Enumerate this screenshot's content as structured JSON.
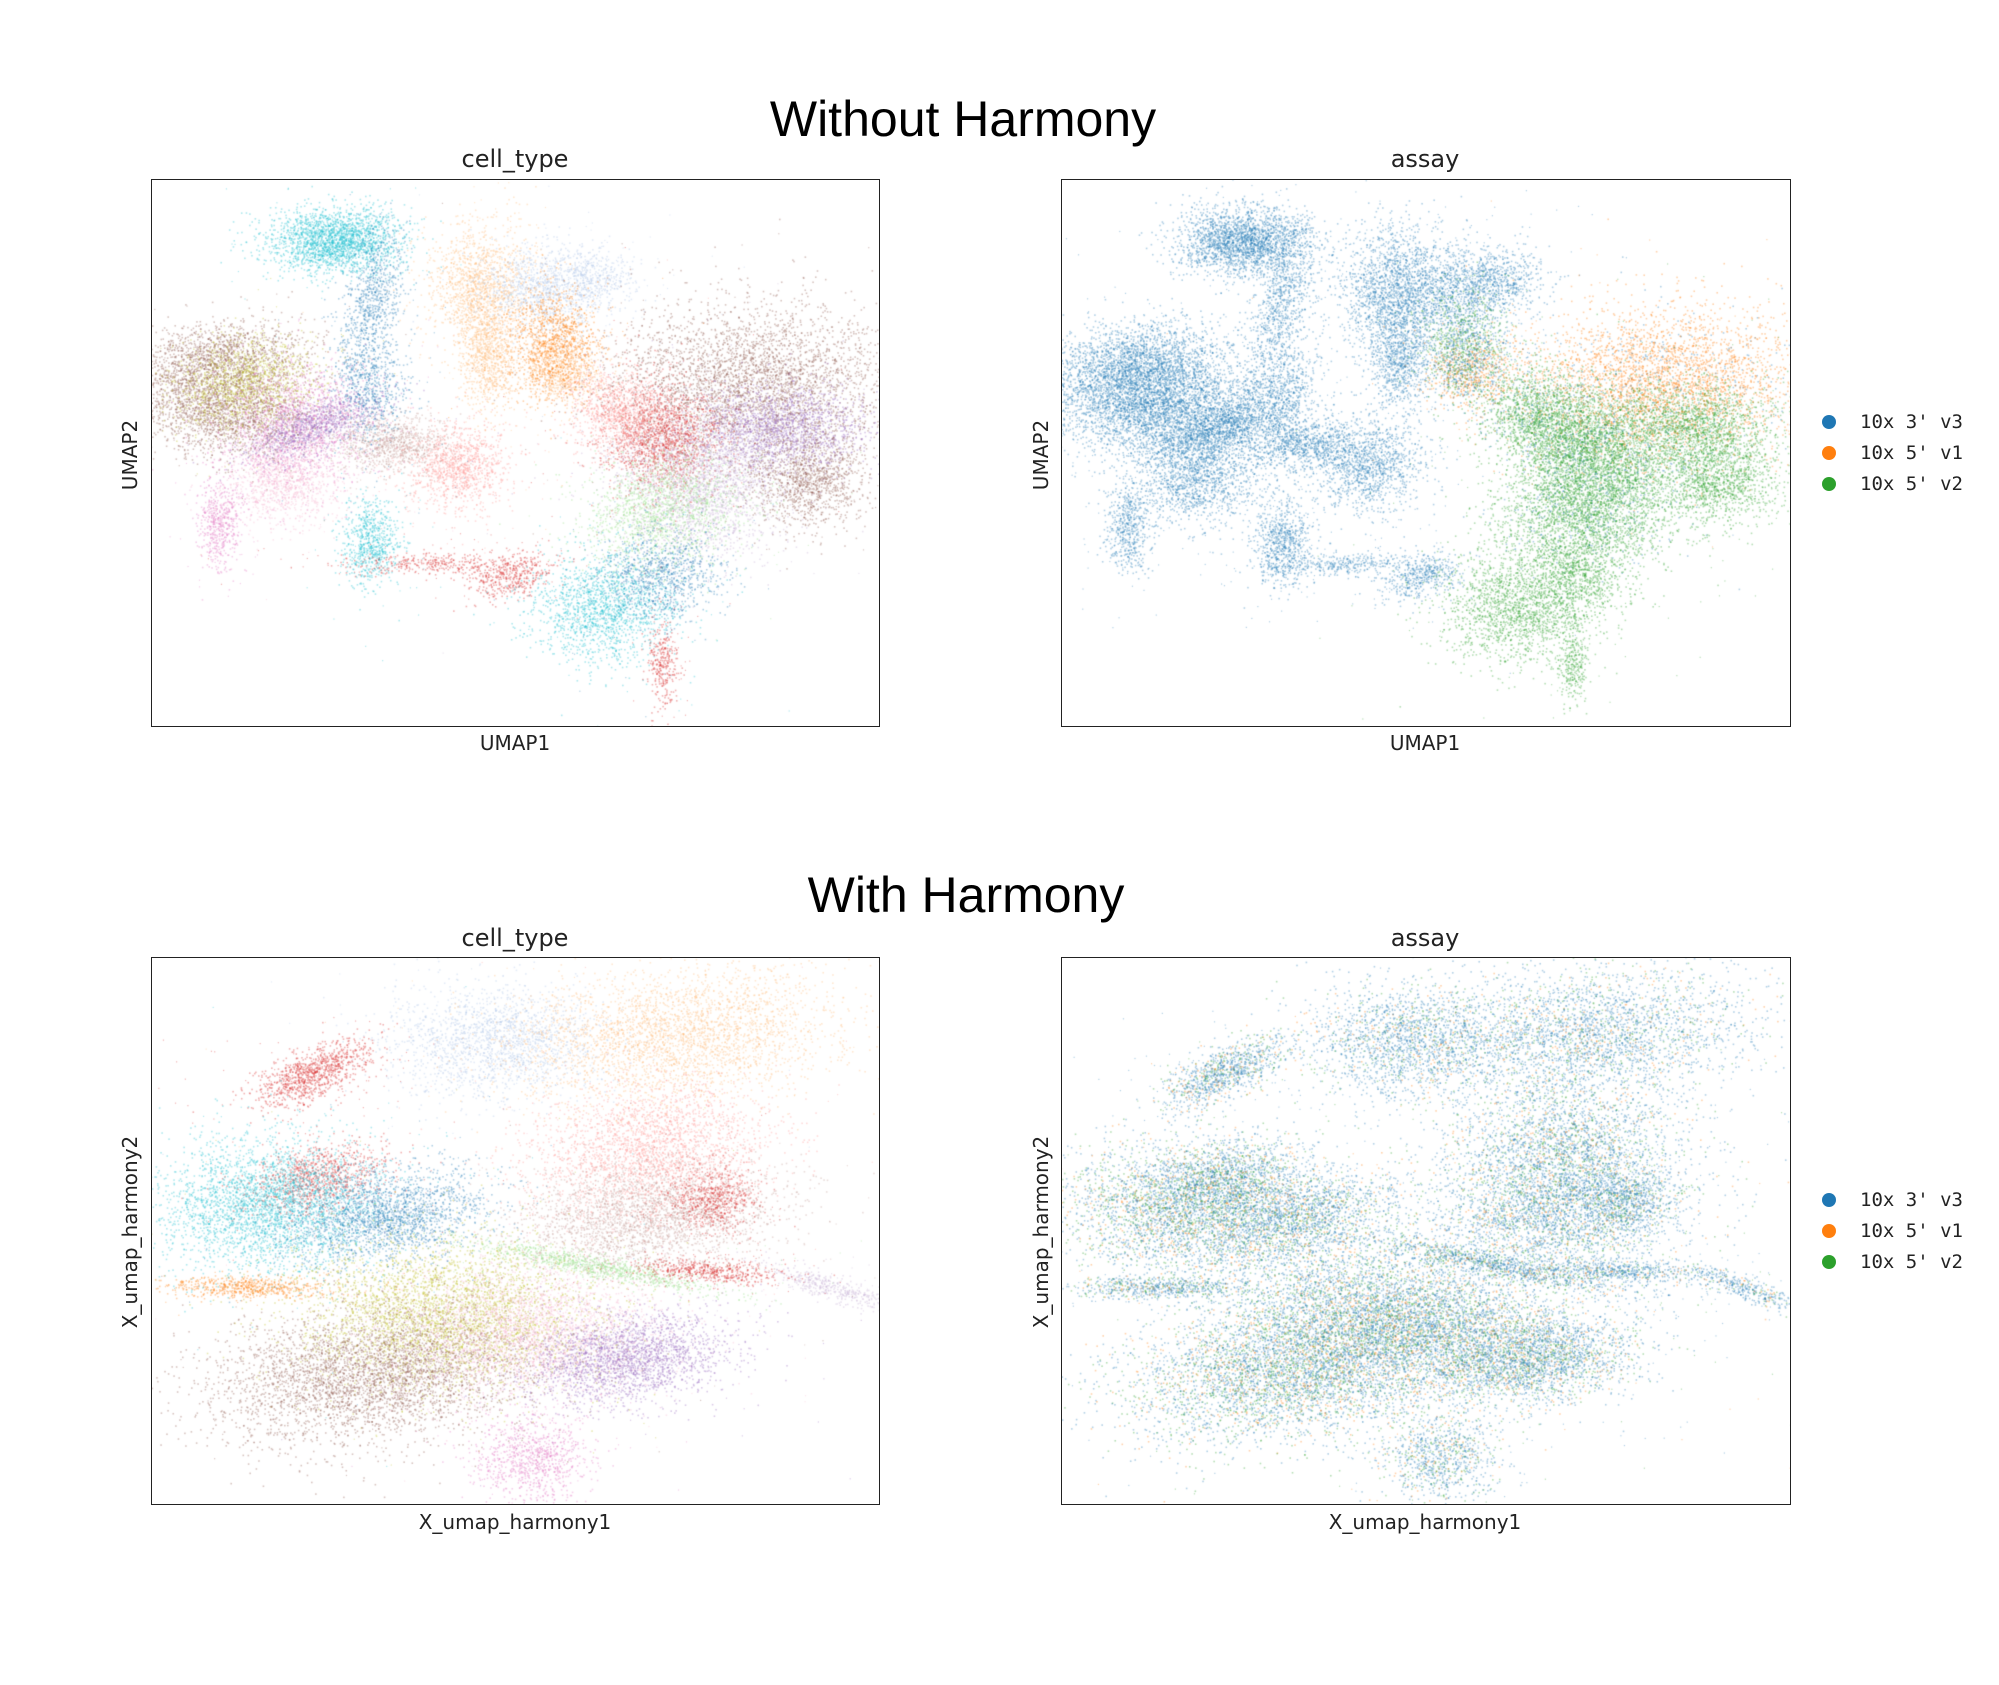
{
  "figure": {
    "sections": [
      {
        "title": "Without Harmony"
      },
      {
        "title": "With Harmony"
      }
    ]
  },
  "legend": {
    "items": [
      {
        "label": "10x 3' v3",
        "color": "#1f77b4"
      },
      {
        "label": "10x 5' v1",
        "color": "#ff7f0e"
      },
      {
        "label": "10x 5' v2",
        "color": "#2ca02c"
      }
    ]
  },
  "chart_data": [
    {
      "type": "scatter",
      "title": "cell_type",
      "xlabel": "UMAP1",
      "ylabel": "UMAP2",
      "grid": false,
      "legend": "none",
      "color_by": "cell_type",
      "palette": [
        "#17becf",
        "#1f77b4",
        "#ffbb78",
        "#aec7e8",
        "#d62728",
        "#ff9896",
        "#8c564b",
        "#c49c94",
        "#9467bd",
        "#c5b0d5",
        "#bcbd22",
        "#e377c2",
        "#f7b6d2",
        "#98df8a",
        "#ff7f0e",
        "#2ca02c"
      ]
    },
    {
      "type": "scatter",
      "title": "assay",
      "xlabel": "UMAP1",
      "ylabel": "UMAP2",
      "grid": false,
      "legend": "right",
      "color_by": "assay",
      "series": [
        {
          "name": "10x 3' v3",
          "color": "#1f77b4"
        },
        {
          "name": "10x 5' v1",
          "color": "#ff7f0e"
        },
        {
          "name": "10x 5' v2",
          "color": "#2ca02c"
        }
      ]
    },
    {
      "type": "scatter",
      "title": "cell_type",
      "xlabel": "X_umap_harmony1",
      "ylabel": "X_umap_harmony2",
      "grid": false,
      "legend": "none",
      "color_by": "cell_type",
      "palette": [
        "#17becf",
        "#1f77b4",
        "#ffbb78",
        "#aec7e8",
        "#d62728",
        "#ff9896",
        "#8c564b",
        "#c49c94",
        "#9467bd",
        "#c5b0d5",
        "#bcbd22",
        "#e377c2",
        "#f7b6d2",
        "#98df8a",
        "#ff7f0e",
        "#2ca02c"
      ]
    },
    {
      "type": "scatter",
      "title": "assay",
      "xlabel": "X_umap_harmony1",
      "ylabel": "X_umap_harmony2",
      "grid": false,
      "legend": "right",
      "color_by": "assay",
      "series": [
        {
          "name": "10x 3' v3",
          "color": "#1f77b4"
        },
        {
          "name": "10x 5' v1",
          "color": "#ff7f0e"
        },
        {
          "name": "10x 5' v2",
          "color": "#2ca02c"
        }
      ]
    }
  ]
}
